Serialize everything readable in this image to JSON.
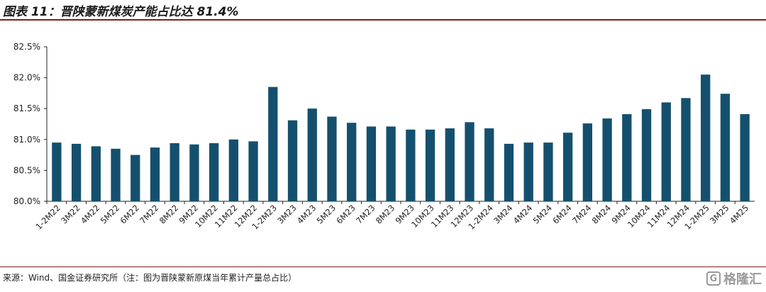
{
  "header": {
    "title": "图表 11：晋陕蒙新煤炭产能占比达 81.4%"
  },
  "footer": {
    "source": "来源：Wind、国金证券研究所（注：图为晋陕蒙新原煤当年累计产量总占比）",
    "watermark_icon": "logo-icon",
    "watermark": "格隆汇"
  },
  "chart_data": {
    "type": "bar",
    "title": "",
    "xlabel": "",
    "ylabel": "",
    "ylim": [
      80.0,
      82.5
    ],
    "yticks": [
      80.0,
      80.5,
      81.0,
      81.5,
      82.0,
      82.5
    ],
    "ytick_labels": [
      "80.0%",
      "80.5%",
      "81.0%",
      "81.5%",
      "82.0%",
      "82.5%"
    ],
    "grid": false,
    "legend": "none",
    "bar_color": "#14506e",
    "categories": [
      "1-2M22",
      "3M22",
      "4M22",
      "5M22",
      "6M22",
      "7M22",
      "8M22",
      "9M22",
      "10M22",
      "11M22",
      "12M22",
      "1-2M23",
      "3M23",
      "4M23",
      "5M23",
      "6M23",
      "7M23",
      "8M23",
      "9M23",
      "10M23",
      "11M23",
      "12M23",
      "1-2M24",
      "3M24",
      "4M24",
      "5M24",
      "6M24",
      "7M24",
      "8M24",
      "9M24",
      "10M24",
      "11M24",
      "12M24",
      "1-2M25",
      "3M25",
      "4M25"
    ],
    "values": [
      80.95,
      80.93,
      80.89,
      80.85,
      80.75,
      80.87,
      80.94,
      80.92,
      80.94,
      81.0,
      80.97,
      81.85,
      81.31,
      81.5,
      81.37,
      81.27,
      81.21,
      81.21,
      81.16,
      81.16,
      81.18,
      81.28,
      81.18,
      80.93,
      80.95,
      80.95,
      81.11,
      81.26,
      81.34,
      81.41,
      81.49,
      81.6,
      81.67,
      82.05,
      81.74,
      81.41
    ]
  }
}
